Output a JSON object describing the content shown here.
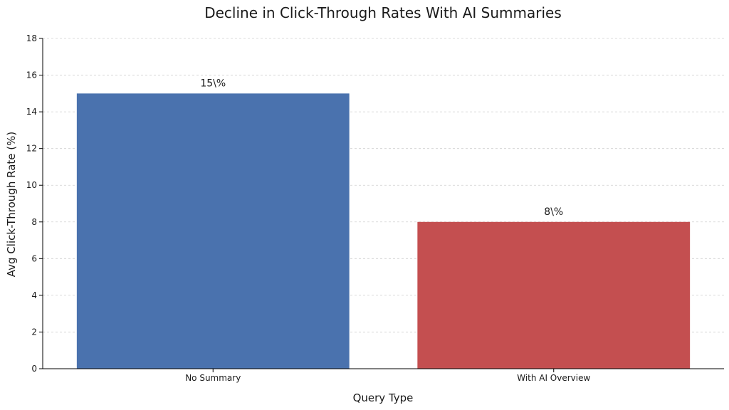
{
  "chart_data": {
    "type": "bar",
    "title": "Decline in Click-Through Rates With AI Summaries",
    "xlabel": "Query Type",
    "ylabel": "Avg Click-Through Rate (%)",
    "categories": [
      "No Summary",
      "With AI Overview"
    ],
    "values": [
      15,
      8
    ],
    "data_labels": [
      "15\\%",
      "8\\%"
    ],
    "colors": [
      "#4a72ae",
      "#c44f50"
    ],
    "ylim": [
      0,
      18
    ],
    "yticks": [
      0,
      2,
      4,
      6,
      8,
      10,
      12,
      14,
      16,
      18
    ],
    "grid": "y-dashed",
    "legend": "none"
  }
}
